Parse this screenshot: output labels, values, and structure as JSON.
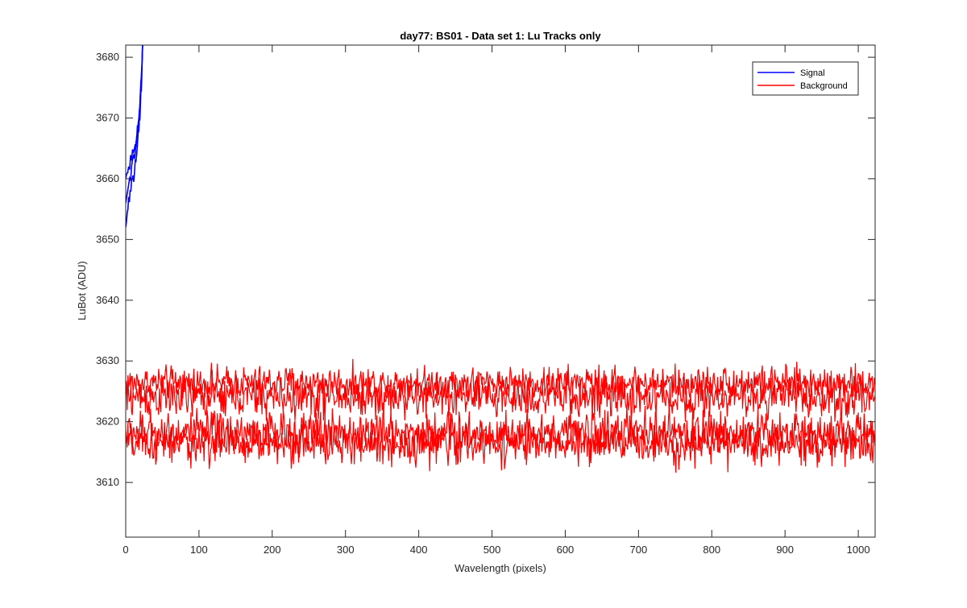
{
  "chart_data": {
    "type": "line",
    "title": "day77: BS01 - Data set 1: Lu Tracks only",
    "xlabel": "Wavelength (pixels)",
    "ylabel": "LuBot (ADU)",
    "xlim": [
      0,
      1023
    ],
    "ylim": [
      3601,
      3682
    ],
    "x_ticks": [
      0,
      100,
      200,
      300,
      400,
      500,
      600,
      700,
      800,
      900,
      1000
    ],
    "y_ticks": [
      3610,
      3620,
      3630,
      3640,
      3650,
      3660,
      3670,
      3680
    ],
    "grid": false,
    "legend_position": "top-right",
    "legend": [
      "Signal",
      "Background"
    ],
    "series": [
      {
        "name": "Signal",
        "color": "#0000ff",
        "traces": [
          {
            "x_range": [
              0,
              23
            ],
            "trend": "rising",
            "points": [
              [
                0,
                3652
              ],
              [
                3,
                3655
              ],
              [
                6,
                3658
              ],
              [
                9,
                3660
              ],
              [
                12,
                3661
              ],
              [
                15,
                3664
              ],
              [
                18,
                3668
              ],
              [
                20,
                3672
              ],
              [
                22,
                3677
              ],
              [
                23,
                3682
              ]
            ]
          },
          {
            "x_range": [
              0,
              23
            ],
            "trend": "rising",
            "points": [
              [
                0,
                3656
              ],
              [
                4,
                3659
              ],
              [
                8,
                3662
              ],
              [
                11,
                3664
              ],
              [
                14,
                3666
              ],
              [
                17,
                3668
              ],
              [
                19,
                3671
              ],
              [
                21,
                3675
              ],
              [
                23,
                3682
              ]
            ]
          },
          {
            "x_range": [
              0,
              23
            ],
            "trend": "rising",
            "points": [
              [
                0,
                3660
              ],
              [
                4,
                3662
              ],
              [
                8,
                3663
              ],
              [
                12,
                3665
              ],
              [
                15,
                3667
              ],
              [
                18,
                3670
              ],
              [
                20,
                3674
              ],
              [
                22,
                3678
              ],
              [
                23,
                3682
              ]
            ]
          }
        ]
      },
      {
        "name": "Background",
        "color": "#ff0000",
        "traces": [
          {
            "x_range": [
              0,
              1023
            ],
            "mean": 3626.4,
            "noise_range": [
              3624,
              3631
            ]
          },
          {
            "x_range": [
              0,
              1023
            ],
            "mean": 3624.0,
            "noise_range": [
              3620,
              3629
            ]
          },
          {
            "x_range": [
              0,
              1023
            ],
            "mean": 3618.3,
            "noise_range": [
              3614,
              3623
            ]
          },
          {
            "x_range": [
              0,
              1023
            ],
            "mean": 3616.3,
            "noise_range": [
              3611.5,
              3620
            ]
          }
        ]
      }
    ]
  }
}
